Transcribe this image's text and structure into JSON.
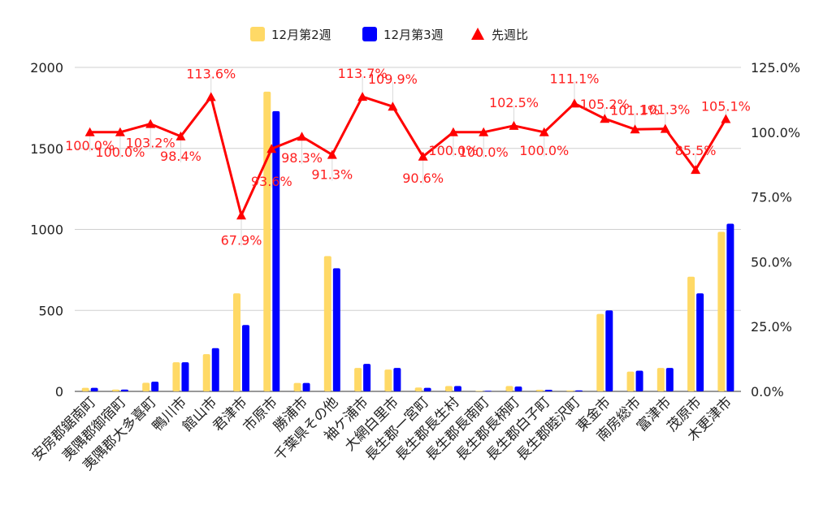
{
  "chart_data": {
    "type": "bar",
    "categories": [
      "安房郡鋸南町",
      "夷隅郡御宿町",
      "夷隅郡大多喜町",
      "鴨川市",
      "館山市",
      "君津市",
      "市原市",
      "勝浦市",
      "千葉県その他",
      "袖ケ浦市",
      "大網白里市",
      "長生郡一宮町",
      "長生郡長生村",
      "長生郡長南町",
      "長生郡長柄町",
      "長生郡白子町",
      "長生郡睦沢町",
      "東金市",
      "南房総市",
      "富津市",
      "茂原市",
      "木更津市"
    ],
    "series": [
      {
        "name": "12月第2週",
        "type": "bar",
        "axis": "left",
        "color": "#ffd966",
        "values": [
          22,
          11,
          53,
          180,
          230,
          605,
          1850,
          52,
          835,
          145,
          135,
          24,
          33,
          3,
          33,
          10,
          6,
          478,
          122,
          145,
          708,
          985
        ]
      },
      {
        "name": "12月第3週",
        "type": "bar",
        "axis": "left",
        "color": "#0000ff",
        "values": [
          22,
          11,
          60,
          180,
          267,
          410,
          1730,
          52,
          760,
          170,
          145,
          22,
          33,
          3,
          30,
          10,
          6,
          500,
          128,
          145,
          605,
          1035
        ]
      },
      {
        "name": "先週比",
        "type": "line",
        "axis": "right",
        "color": "#ff0000",
        "values": [
          100.0,
          100.0,
          103.2,
          98.4,
          113.6,
          67.9,
          93.6,
          98.3,
          91.3,
          113.7,
          109.9,
          90.6,
          100.0,
          100.0,
          102.5,
          100.0,
          111.1,
          105.2,
          101.1,
          101.3,
          85.5,
          105.1
        ],
        "labels": [
          "100.0%",
          "100.0%",
          "103.2%",
          "98.4%",
          "113.6%",
          "67.9%",
          "93.6%",
          "98.3%",
          "91.3%",
          "113.7%",
          "109.9%",
          "90.6%",
          "100.0%",
          "100.0%",
          "102.5%",
          "100.0%",
          "111.1%",
          "105.2%",
          "101.1%",
          "101.3%",
          "85.5%",
          "105.1%"
        ]
      }
    ],
    "y_left": {
      "min": 0,
      "max": 2000,
      "ticks": [
        0,
        500,
        1000,
        1500,
        2000
      ],
      "tick_labels": [
        "0",
        "500",
        "1000",
        "1500",
        "2000"
      ]
    },
    "y_right": {
      "min": 0,
      "max": 125,
      "ticks": [
        0,
        25,
        50,
        75,
        100,
        125
      ],
      "tick_labels": [
        "0.0%",
        "25.0%",
        "50.0%",
        "75.0%",
        "100.0%",
        "125.0%"
      ]
    },
    "legend": {
      "position": "top",
      "items": [
        {
          "label": "12月第2週",
          "shape": "square",
          "color": "#ffd966"
        },
        {
          "label": "12月第3週",
          "shape": "square",
          "color": "#0000ff"
        },
        {
          "label": "先週比",
          "shape": "triangle",
          "color": "#ff0000"
        }
      ]
    },
    "grid": true,
    "title": "",
    "xlabel": "",
    "ylabel": ""
  }
}
